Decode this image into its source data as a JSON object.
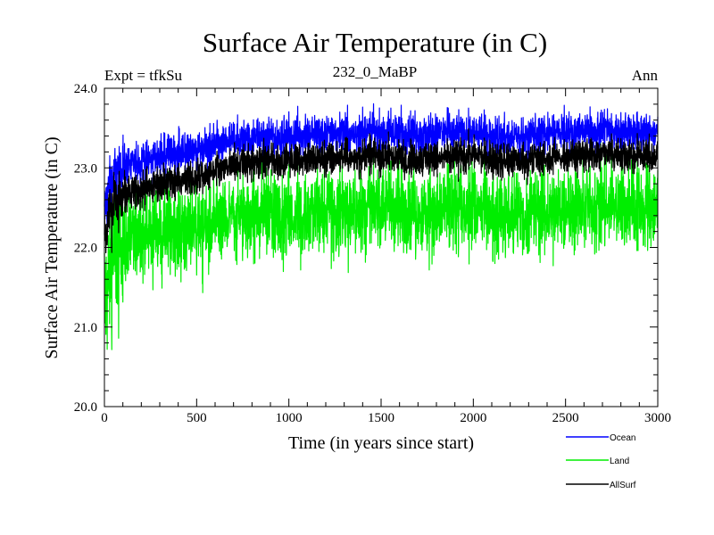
{
  "header": {
    "title": "Surface Air Temperature (in C)",
    "subtitle": "232_0_MaBP",
    "left_label": "Expt = tfkSu",
    "right_label": "Ann"
  },
  "chart_data": {
    "type": "line",
    "title": "Surface Air Temperature (in C)",
    "subtitle": "232_0_MaBP",
    "xlabel": "Time (in years since start)",
    "ylabel": "Surface Air Temperature (in C)",
    "xlim": [
      0,
      3000
    ],
    "ylim": [
      20.0,
      24.0
    ],
    "x_ticks": [
      0,
      500,
      1000,
      1500,
      2000,
      2500,
      3000
    ],
    "x_tick_labels": [
      "0",
      "500",
      "1000",
      "1500",
      "2000",
      "2500",
      "3000"
    ],
    "y_ticks": [
      20.0,
      21.0,
      22.0,
      23.0,
      24.0
    ],
    "y_tick_labels": [
      "20.0",
      "21.0",
      "22.0",
      "23.0",
      "24.0"
    ],
    "grid": false,
    "legend_position": "bottom-right",
    "series": [
      {
        "name": "Ocean",
        "color": "#0000ff",
        "x": [
          0,
          25,
          50,
          100,
          200,
          300,
          400,
          500,
          600,
          700,
          800,
          1000,
          1200,
          1400,
          1500,
          1700,
          2000,
          2200,
          2500,
          2700,
          3000
        ],
        "y": [
          22.45,
          22.75,
          22.9,
          23.0,
          23.1,
          23.15,
          23.2,
          23.22,
          23.28,
          23.35,
          23.38,
          23.4,
          23.42,
          23.45,
          23.45,
          23.43,
          23.45,
          23.38,
          23.45,
          23.48,
          23.45
        ],
        "noise": 0.14
      },
      {
        "name": "Land",
        "color": "#00ee00",
        "x": [
          0,
          25,
          50,
          100,
          200,
          300,
          400,
          500,
          600,
          700,
          800,
          1000,
          1200,
          1400,
          1500,
          1700,
          2000,
          2200,
          2500,
          2700,
          3000
        ],
        "y": [
          21.2,
          21.75,
          21.95,
          22.05,
          22.15,
          22.2,
          22.22,
          22.25,
          22.3,
          22.38,
          22.42,
          22.42,
          22.45,
          22.48,
          22.5,
          22.45,
          22.48,
          22.4,
          22.5,
          22.52,
          22.5
        ],
        "noise": 0.3
      },
      {
        "name": "AllSurf",
        "color": "#000000",
        "x": [
          0,
          25,
          50,
          100,
          200,
          300,
          400,
          500,
          600,
          700,
          800,
          1000,
          1200,
          1400,
          1500,
          1700,
          2000,
          2200,
          2500,
          2700,
          3000
        ],
        "y": [
          22.1,
          22.4,
          22.55,
          22.65,
          22.75,
          22.8,
          22.85,
          22.88,
          22.95,
          23.02,
          23.08,
          23.1,
          23.12,
          23.15,
          23.15,
          23.12,
          23.15,
          23.08,
          23.15,
          23.18,
          23.15
        ],
        "noise": 0.12
      }
    ]
  }
}
